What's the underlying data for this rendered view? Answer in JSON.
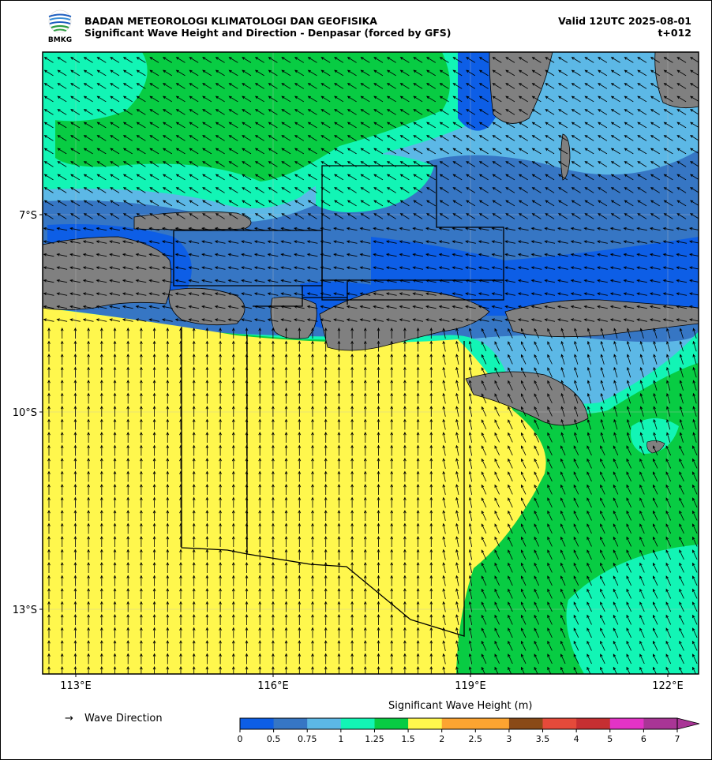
{
  "header": {
    "agency": "BADAN METEOROLOGI KLIMATOLOGI DAN GEOFISIKA",
    "subtitle": "Significant Wave Height and Direction - Denpasar (forced by GFS)",
    "valid": "Valid 12UTC 2025-08-01",
    "lead": "t+012",
    "logo_text": "BMKG"
  },
  "map": {
    "lon_labels": [
      "113°E",
      "116°E",
      "119°E",
      "122°E"
    ],
    "lat_labels": [
      "7°S",
      "10°S",
      "13°S"
    ],
    "land_color": "#808080",
    "arrow_color": "#000000"
  },
  "legend": {
    "direction_arrow": "→",
    "direction_label": "Wave Direction",
    "colorbar_title": "Significant Wave Height (m)",
    "levels": [
      "0",
      "0.5",
      "0.75",
      "1",
      "1.25",
      "1.5",
      "2",
      "2.5",
      "3",
      "3.5",
      "4",
      "5",
      "6",
      "7"
    ],
    "colors": [
      "#0d5ee6",
      "#3676c4",
      "#5cb8e6",
      "#12f5b5",
      "#08cc43",
      "#fff74d",
      "#fca431",
      "#fca431",
      "#8a4a17",
      "#e54a3a",
      "#c52f32",
      "#e333c6",
      "#a93596",
      "#a93596"
    ]
  }
}
